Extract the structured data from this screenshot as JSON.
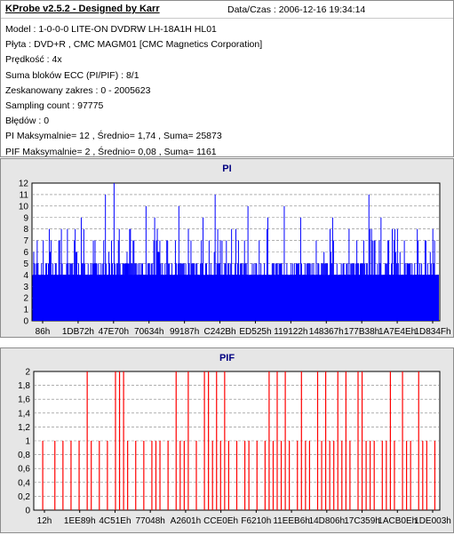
{
  "header": {
    "app_title": "KProbe v2.5.2 - Designed by Karr",
    "datetime": "Data/Czas : 2006-12-16 19:34:14"
  },
  "info": [
    "Model : 1-0-0-0 LITE-ON DVDRW LH-18A1H   HL01",
    "Płyta : DVD+R , CMC MAGM01 [CMC Magnetics Corporation]",
    "Prędkość : 4x",
    "Suma bloków ECC (PI/PIF) : 8/1",
    "Zeskanowany zakres : 0 - 2005623",
    "Sampling count : 97775",
    "Błędów : 0",
    "PI Maksymalnie= 12 , Średnio= 1,74 , Suma= 25873",
    "PIF Maksymalnie= 2 , Średnio= 0,08 , Suma= 1161"
  ],
  "chart_data": [
    {
      "type": "bar",
      "title": "PI",
      "color": "#0000ff",
      "ylim": [
        0,
        12
      ],
      "yticks": [
        "0",
        "1",
        "2",
        "3",
        "4",
        "5",
        "6",
        "7",
        "8",
        "9",
        "10",
        "11",
        "12"
      ],
      "xtick_labels": [
        "86h",
        "1DB72h",
        "47E70h",
        "70634h",
        "99187h",
        "C242Bh",
        "ED525h",
        "119122h",
        "148367h",
        "177B38h",
        "1A7E4Eh",
        "1D834Fh"
      ],
      "grid": true,
      "n_samples": 470,
      "baseline_range": [
        4,
        5
      ],
      "notable_points": [
        [
          0.04,
          8
        ],
        [
          0.12,
          9
        ],
        [
          0.18,
          11
        ],
        [
          0.2,
          12
        ],
        [
          0.24,
          8
        ],
        [
          0.28,
          10
        ],
        [
          0.3,
          9
        ],
        [
          0.33,
          7
        ],
        [
          0.36,
          10
        ],
        [
          0.42,
          9
        ],
        [
          0.45,
          11
        ],
        [
          0.5,
          8
        ],
        [
          0.53,
          10
        ],
        [
          0.58,
          9
        ],
        [
          0.62,
          10
        ],
        [
          0.66,
          9
        ],
        [
          0.7,
          7
        ],
        [
          0.74,
          9
        ],
        [
          0.78,
          8
        ],
        [
          0.8,
          7
        ],
        [
          0.83,
          11
        ],
        [
          0.86,
          9
        ],
        [
          0.9,
          8
        ],
        [
          0.95,
          7
        ],
        [
          0.98,
          6
        ]
      ]
    },
    {
      "type": "bar",
      "title": "PIF",
      "color": "#ff0000",
      "ylim": [
        0,
        2
      ],
      "yticks": [
        "0",
        "0,2",
        "0,4",
        "0,6",
        "0,8",
        "1",
        "1,2",
        "1,4",
        "1,6",
        "1,8",
        "2"
      ],
      "xtick_labels": [
        "12h",
        "1EE89h",
        "4C51Eh",
        "77048h",
        "A2601h",
        "CCE0Eh",
        "F6210h",
        "11EEB6h",
        "14D806h",
        "17C359h",
        "1ACB0Eh",
        "1DE003h"
      ],
      "grid": true,
      "two_positions": [
        0.13,
        0.21,
        0.22,
        0.2,
        0.35,
        0.38,
        0.42,
        0.43,
        0.45,
        0.47,
        0.58,
        0.6,
        0.62,
        0.66,
        0.7,
        0.72,
        0.75,
        0.77,
        0.8,
        0.81,
        0.88,
        0.91,
        0.95
      ],
      "one_positions": [
        0.02,
        0.05,
        0.07,
        0.09,
        0.11,
        0.14,
        0.16,
        0.18,
        0.23,
        0.25,
        0.27,
        0.29,
        0.3,
        0.31,
        0.33,
        0.36,
        0.37,
        0.4,
        0.44,
        0.46,
        0.48,
        0.5,
        0.52,
        0.53,
        0.55,
        0.57,
        0.59,
        0.61,
        0.63,
        0.65,
        0.67,
        0.68,
        0.71,
        0.73,
        0.74,
        0.76,
        0.78,
        0.82,
        0.83,
        0.84,
        0.86,
        0.87,
        0.89,
        0.92,
        0.93,
        0.96,
        0.97,
        0.99
      ]
    }
  ]
}
